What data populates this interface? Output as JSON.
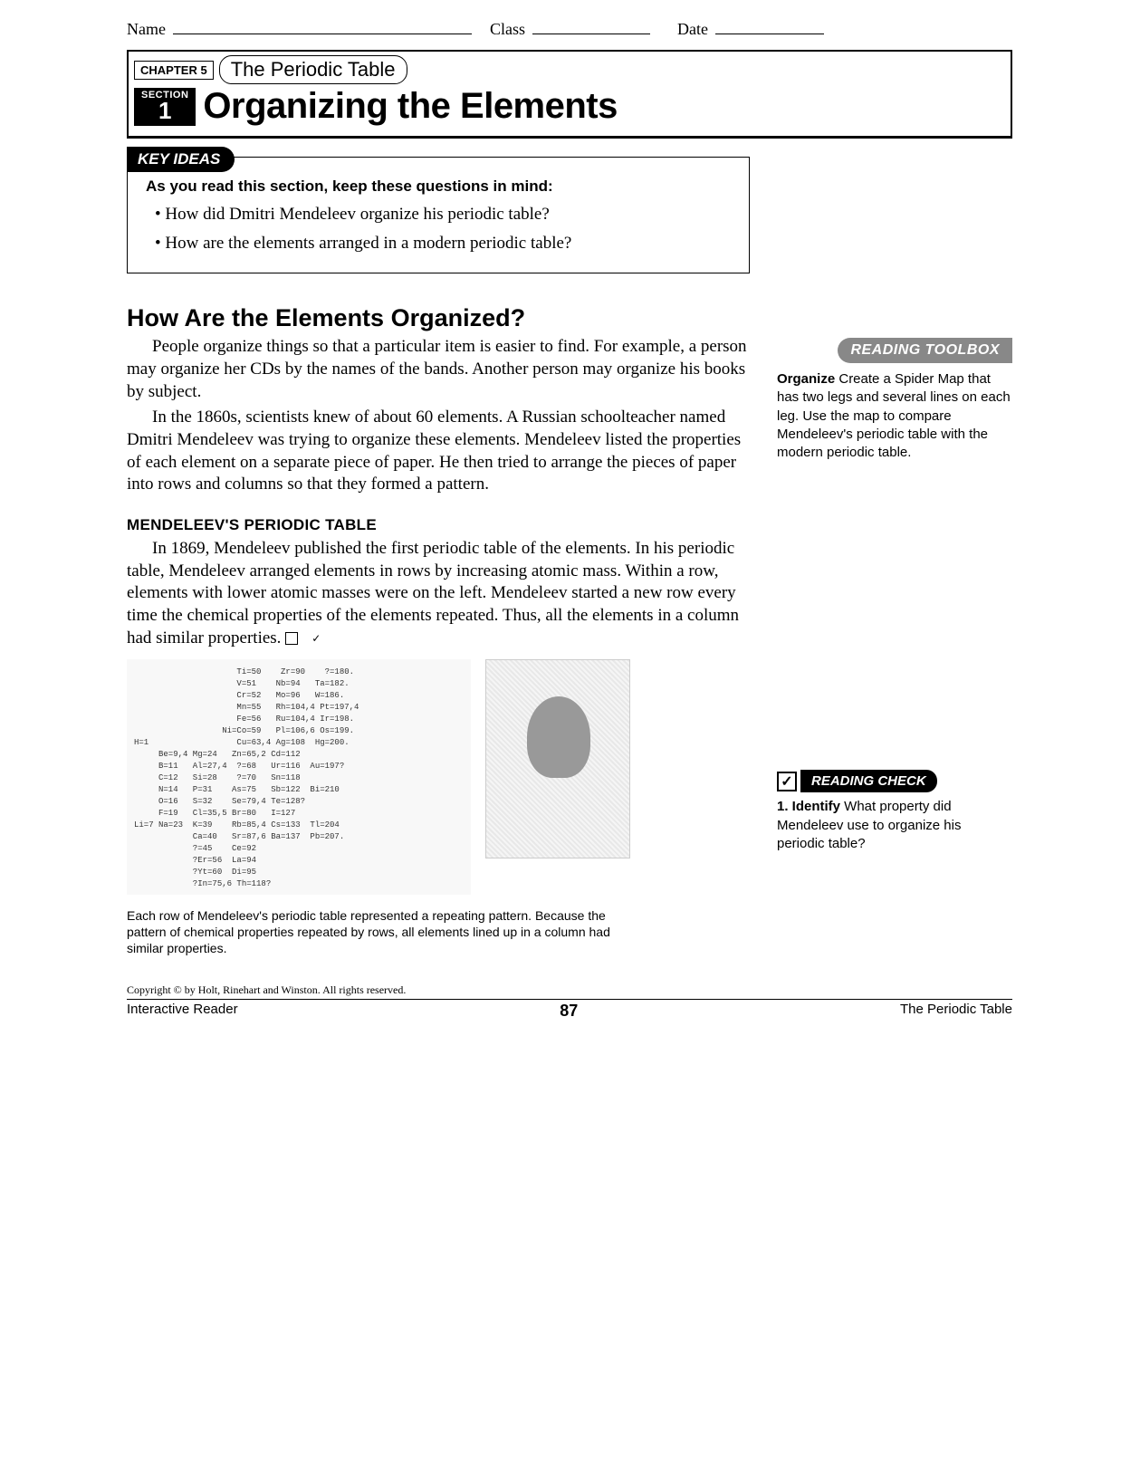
{
  "header": {
    "name_label": "Name",
    "class_label": "Class",
    "date_label": "Date"
  },
  "chapter": {
    "chapter_label": "CHAPTER 5",
    "chapter_title": "The Periodic Table",
    "section_label": "SECTION",
    "section_number": "1",
    "section_title": "Organizing the Elements"
  },
  "key_ideas": {
    "tab": "KEY IDEAS",
    "intro": "As you read this section, keep these questions in mind:",
    "items": [
      "How did Dmitri Mendeleev organize his periodic table?",
      "How are the elements arranged in a modern periodic table?"
    ]
  },
  "heading1": "How Are the Elements Organized?",
  "para1": "People organize things so that a particular item is easier to find. For example, a person may organize her CDs by the names of the bands. Another person may organize his books by subject.",
  "para2": "In the 1860s, scientists knew of about 60 elements. A Russian schoolteacher named Dmitri Mendeleev was trying to organize these elements. Mendeleev listed the properties of each element on a separate piece of paper. He then tried to arrange the pieces of paper into rows and columns so that they formed a pattern.",
  "subhead1": "MENDELEEV'S PERIODIC TABLE",
  "para3": "In 1869, Mendeleev published the first periodic table of the elements. In his periodic table, Mendeleev arranged elements in rows by increasing atomic mass. Within a row, elements with lower atomic masses were on the left. Mendeleev started a new row every time the chemical properties of the elements repeated. Thus, all the elements in a column had similar properties. ",
  "check_glyph": "✓",
  "mendeleev_table_text": "                     Ti=50    Zr=90    ?=180.\n                     V=51    Nb=94   Ta=182.\n                     Cr=52   Mo=96   W=186.\n                     Mn=55   Rh=104,4 Pt=197,4\n                     Fe=56   Ru=104,4 Ir=198.\n                  Ni=Co=59   Pl=106,6 Os=199.\nH=1                  Cu=63,4 Ag=108  Hg=200.\n     Be=9,4 Mg=24   Zn=65,2 Cd=112\n     B=11   Al=27,4  ?=68   Ur=116  Au=197?\n     C=12   Si=28    ?=70   Sn=118\n     N=14   P=31    As=75   Sb=122  Bi=210\n     O=16   S=32    Se=79,4 Te=128?\n     F=19   Cl=35,5 Br=80   I=127\nLi=7 Na=23  K=39    Rb=85,4 Cs=133  Tl=204\n            Ca=40   Sr=87,6 Ba=137  Pb=207.\n            ?=45    Ce=92\n            ?Er=56  La=94\n            ?Yt=60  Di=95\n            ?In=75,6 Th=118?",
  "caption": "Each row of Mendeleev's periodic table represented a repeating pattern. Because the pattern of chemical properties repeated by rows, all elements lined up in a column had similar properties.",
  "toolbox": {
    "tab": "READING TOOLBOX",
    "bold": "Organize",
    "text": " Create a Spider Map that has two legs and several lines on each leg. Use the map to compare Mendeleev's periodic table with the modern periodic table."
  },
  "reading_check": {
    "tab": "READING CHECK",
    "check": "✓",
    "q_num": "1. Identify",
    "q_text": " What property did Mendeleev use to organize his periodic table?"
  },
  "footer": {
    "copyright": "Copyright © by Holt, Rinehart and Winston. All rights reserved.",
    "left": "Interactive Reader",
    "page": "87",
    "right": "The Periodic Table"
  }
}
